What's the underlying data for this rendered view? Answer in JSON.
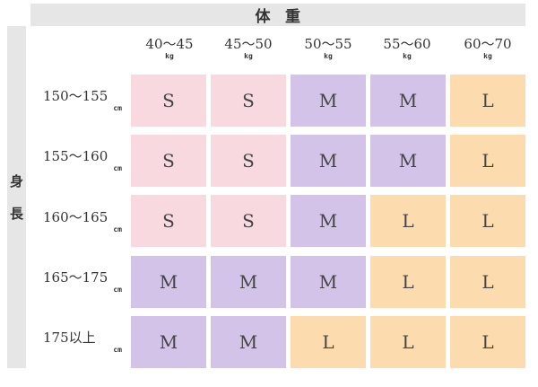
{
  "header": {
    "weight_label_1": "体",
    "weight_label_2": "重",
    "height_label_1": "身",
    "height_label_2": "長"
  },
  "columns": [
    {
      "range": "40～45",
      "unit": "kg"
    },
    {
      "range": "45～50",
      "unit": "kg"
    },
    {
      "range": "50～55",
      "unit": "kg"
    },
    {
      "range": "55～60",
      "unit": "kg"
    },
    {
      "range": "60～70",
      "unit": "kg"
    }
  ],
  "rows": [
    {
      "range": "150～155",
      "unit": "cm",
      "sizes": [
        "S",
        "S",
        "M",
        "M",
        "L"
      ]
    },
    {
      "range": "155～160",
      "unit": "cm",
      "sizes": [
        "S",
        "S",
        "M",
        "M",
        "L"
      ]
    },
    {
      "range": "160～165",
      "unit": "cm",
      "sizes": [
        "S",
        "S",
        "M",
        "L",
        "L"
      ]
    },
    {
      "range": "165～175",
      "unit": "cm",
      "sizes": [
        "M",
        "M",
        "M",
        "L",
        "L"
      ]
    },
    {
      "range": "175以上",
      "unit": "cm",
      "sizes": [
        "M",
        "M",
        "L",
        "L",
        "L"
      ]
    }
  ],
  "colors": {
    "S": "#f8d9e0",
    "M": "#d3c3e8",
    "L": "#fcdcae",
    "header_bg": "#e6e6e6"
  }
}
